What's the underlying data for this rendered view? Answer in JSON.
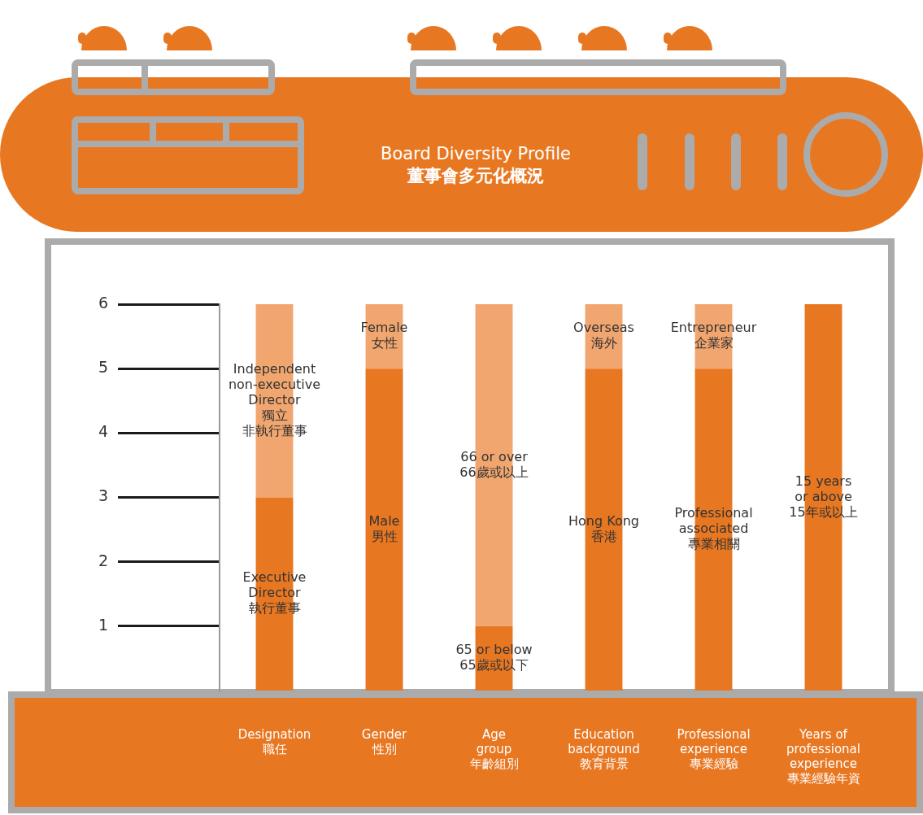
{
  "chart_data": {
    "type": "bar",
    "title": "Board Diversity Profile",
    "subtitle": "董事會多元化概況",
    "categories": [
      "Designation\n職任",
      "Gender\n性別",
      "Age\ngroup\n年齡組別",
      "Education\nbackground\n教育背景",
      "Professional\nexperience\n專業經驗",
      "Years of\nprofessional\nexperience\n專業經驗年資"
    ],
    "series": [
      {
        "color": "#e87722",
        "values": [
          3,
          5,
          1,
          5,
          5,
          6
        ],
        "labels": [
          "Executive\nDirector\n執行董事",
          "Male\n男性",
          "65 or below\n65歲或以下",
          "Hong Kong\n香港",
          "Professional\nassociated\n專業相關",
          "15 years\nor above\n15年或以上"
        ]
      },
      {
        "color": "#f1a66f",
        "values": [
          3,
          1,
          5,
          1,
          1,
          null
        ],
        "labels": [
          "Independent\nnon-executive\nDirector\n獨立\n非執行董事",
          "Female\n女性",
          "66 or over\n66歲或以上",
          "Overseas\n海外",
          "Entrepreneur\n企業家",
          null
        ]
      }
    ],
    "stacked": true,
    "ylim": [
      0,
      6
    ],
    "yticks": [
      1,
      2,
      3,
      4,
      5,
      6
    ],
    "grid": false
  }
}
